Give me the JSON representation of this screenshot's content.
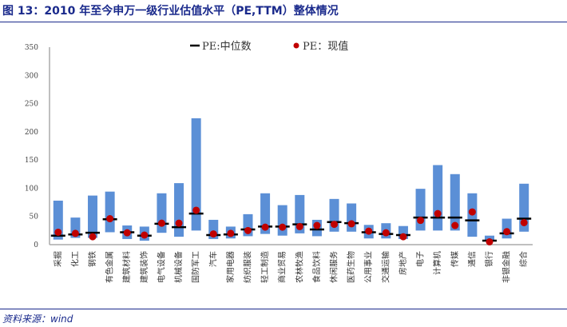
{
  "title": "图 13：2010 年至今申万一级行业估值水平（PE,TTM）整体情况",
  "source": "资料来源：wind",
  "chart_data": {
    "type": "bar",
    "title": "",
    "xlabel": "",
    "ylabel": "",
    "ylim": [
      0,
      350
    ],
    "yticks": [
      "0",
      "50",
      "100",
      "150",
      "200",
      "250",
      "300",
      "350"
    ],
    "grid": false,
    "legend_position": "top",
    "colors": {
      "range_bar": "#5b8fd6",
      "median": "#000000",
      "current": "#c00000"
    },
    "legend": [
      {
        "marker": "line",
        "label": "PE:中位数"
      },
      {
        "marker": "dot",
        "label": "PE：现值"
      }
    ],
    "categories": [
      "采掘",
      "化工",
      "钢铁",
      "有色金属",
      "建筑材料",
      "建筑装饰",
      "电气设备",
      "机械设备",
      "国防军工",
      "汽车",
      "家用电器",
      "纺织服装",
      "轻工制造",
      "商业贸易",
      "农林牧渔",
      "食品饮料",
      "休闲服务",
      "医药生物",
      "公用事业",
      "交通运输",
      "房地产",
      "电子",
      "计算机",
      "传媒",
      "通信",
      "银行",
      "非银金融",
      "综合"
    ],
    "series": [
      {
        "name": "PE:中位数",
        "kind": "median",
        "values": [
          16,
          18,
          21,
          45,
          22,
          16,
          37,
          31,
          55,
          17,
          18,
          27,
          32,
          32,
          36,
          27,
          40,
          38,
          22,
          19,
          17,
          48,
          48,
          48,
          43,
          7,
          20,
          46
        ]
      },
      {
        "name": "PE：现值",
        "kind": "current",
        "values": [
          22,
          20,
          14,
          46,
          21,
          17,
          38,
          38,
          61,
          19,
          20,
          25,
          31,
          31,
          32,
          34,
          36,
          37,
          24,
          21,
          14,
          43,
          55,
          34,
          58,
          5,
          23,
          39
        ]
      },
      {
        "kind": "min",
        "values": [
          9,
          12,
          12,
          22,
          10,
          7,
          21,
          14,
          25,
          10,
          11,
          15,
          19,
          16,
          20,
          15,
          23,
          23,
          11,
          11,
          10,
          25,
          25,
          25,
          14,
          8,
          11,
          23
        ]
      },
      {
        "kind": "max",
        "values": [
          78,
          48,
          87,
          94,
          34,
          32,
          91,
          109,
          224,
          44,
          32,
          54,
          91,
          70,
          88,
          44,
          81,
          73,
          35,
          38,
          33,
          99,
          141,
          125,
          91,
          16,
          46,
          108
        ]
      }
    ]
  }
}
